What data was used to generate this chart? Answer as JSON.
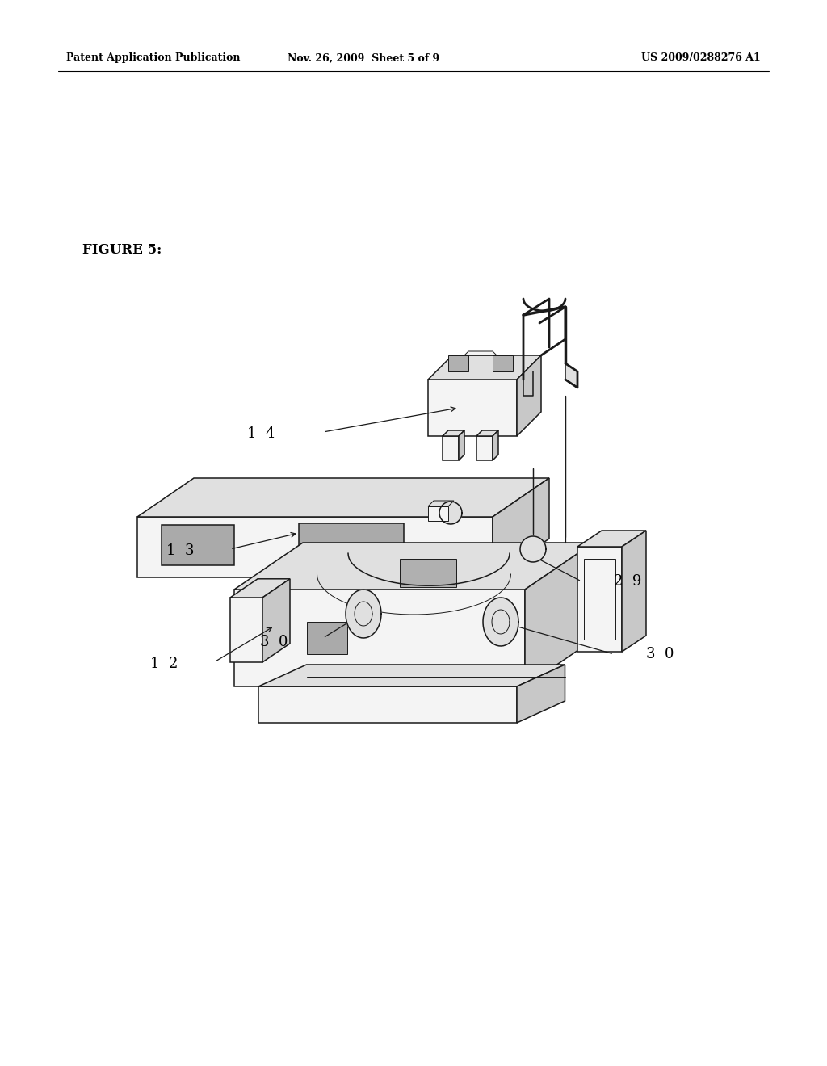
{
  "bg_color": "#ffffff",
  "header_left": "Patent Application Publication",
  "header_mid": "Nov. 26, 2009  Sheet 5 of 9",
  "header_right": "US 2009/0288276 A1",
  "figure_label": "FIGURE 5:",
  "lw": 1.1,
  "lw_thin": 0.7,
  "line_color": "#1a1a1a",
  "fill_light": "#f4f4f4",
  "fill_mid": "#e0e0e0",
  "fill_dark": "#c8c8c8",
  "fill_darker": "#b0b0b0"
}
